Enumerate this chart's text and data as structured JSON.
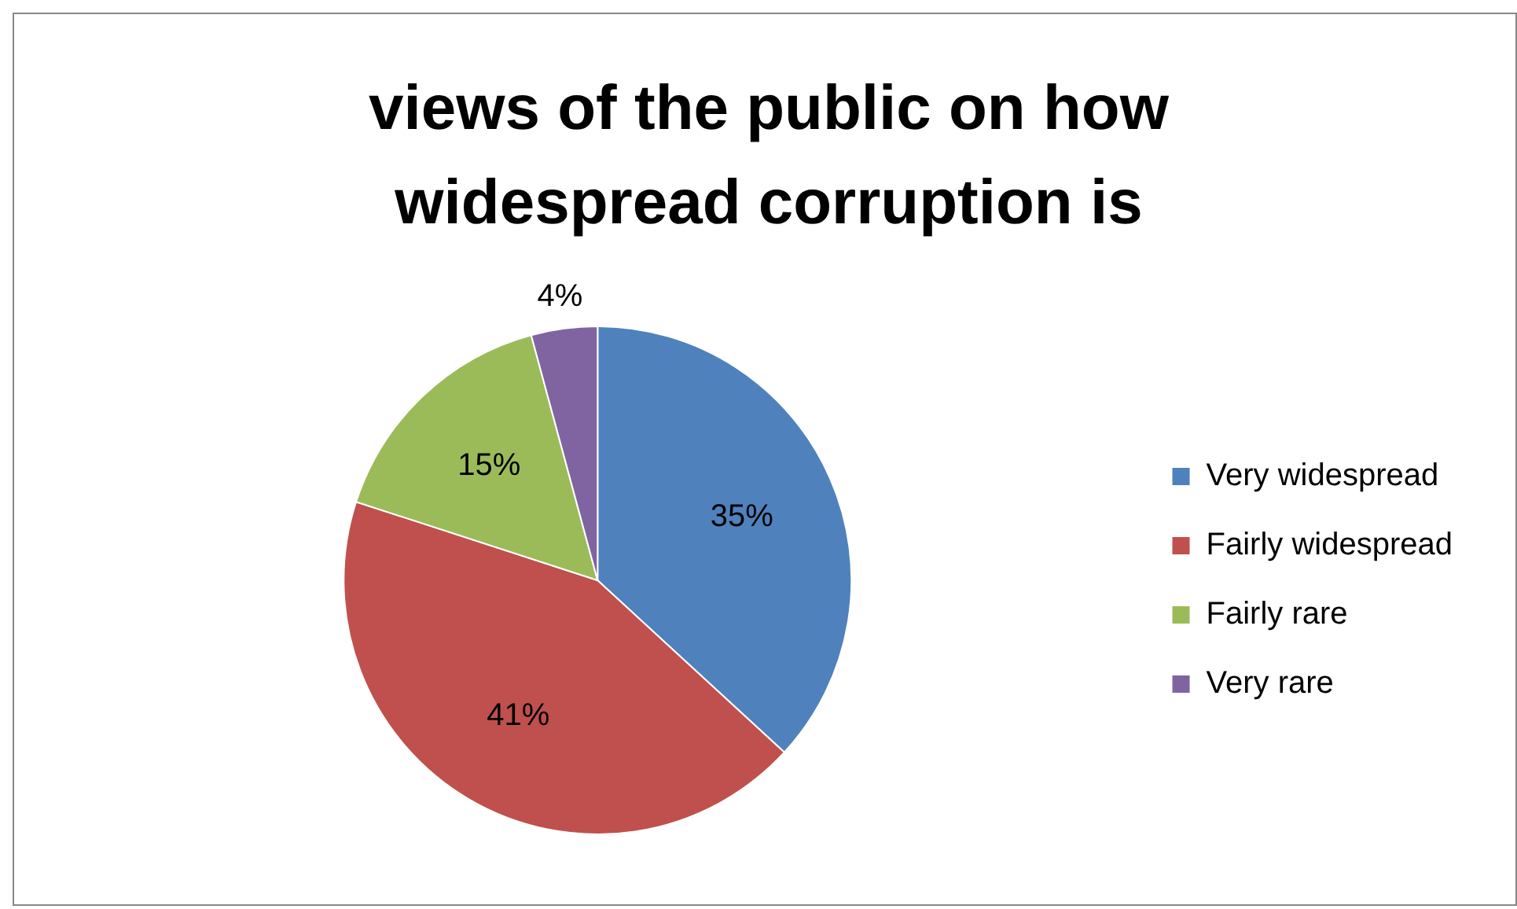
{
  "chart_data": {
    "type": "pie",
    "title": "views of the public on how widespread corruption is",
    "categories": [
      "Very widespread",
      "Fairly widespread",
      "Fairly rare",
      "Very rare"
    ],
    "values": [
      35,
      41,
      15,
      4
    ],
    "colors": [
      "#4f81bd",
      "#c0504d",
      "#9bbb59",
      "#8064a2"
    ],
    "value_labels": [
      "35%",
      "41%",
      "15%",
      "4%"
    ],
    "legend": "right"
  }
}
